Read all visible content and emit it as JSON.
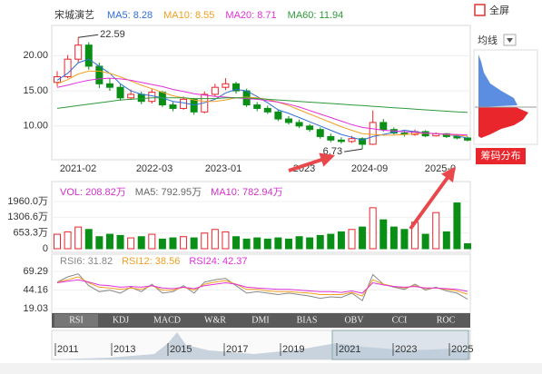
{
  "chart_data": {
    "type": "candlestick",
    "title": "宋城演艺",
    "up_color": "#e8262b",
    "down_color": "#0a8f16",
    "x_labels": [
      "2021-02",
      "2022-03",
      "2023-01",
      "2023",
      "2024-09",
      "2025-0"
    ],
    "ylim": [
      5.2,
      24.3
    ],
    "yticks": [
      {
        "value": 20,
        "label": "20.00"
      },
      {
        "value": 15,
        "label": "15.00"
      },
      {
        "value": 10,
        "label": "10.00"
      }
    ],
    "candles": [
      [
        16.2,
        17.8,
        15.6,
        17.0
      ],
      [
        17.0,
        20.1,
        16.8,
        19.5
      ],
      [
        19.5,
        22.59,
        19.0,
        21.5
      ],
      [
        21.5,
        21.9,
        18.0,
        18.5
      ],
      [
        18.5,
        19.0,
        15.4,
        16.0
      ],
      [
        16.0,
        16.8,
        15.0,
        15.5
      ],
      [
        15.5,
        15.9,
        13.6,
        14.0
      ],
      [
        14.0,
        15.2,
        13.7,
        14.5
      ],
      [
        14.5,
        14.9,
        13.1,
        13.5
      ],
      [
        13.5,
        15.3,
        13.2,
        14.8
      ],
      [
        14.8,
        15.0,
        12.7,
        13.0
      ],
      [
        13.0,
        13.4,
        12.1,
        12.5
      ],
      [
        12.5,
        14.2,
        12.3,
        13.8
      ],
      [
        13.8,
        14.0,
        11.6,
        12.0
      ],
      [
        12.0,
        14.9,
        11.8,
        14.5
      ],
      [
        14.5,
        16.0,
        14.2,
        15.5
      ],
      [
        15.5,
        16.8,
        15.1,
        16.0
      ],
      [
        16.0,
        16.3,
        14.6,
        15.0
      ],
      [
        15.0,
        15.3,
        12.7,
        13.0
      ],
      [
        13.0,
        13.4,
        12.1,
        12.5
      ],
      [
        12.5,
        12.9,
        11.7,
        12.0
      ],
      [
        12.0,
        12.3,
        10.7,
        11.0
      ],
      [
        11.0,
        11.4,
        10.2,
        10.5
      ],
      [
        10.5,
        10.9,
        9.7,
        10.0
      ],
      [
        10.0,
        10.3,
        9.2,
        9.5
      ],
      [
        9.5,
        9.8,
        8.2,
        8.5
      ],
      [
        8.5,
        8.9,
        7.7,
        8.0
      ],
      [
        8.0,
        8.4,
        7.5,
        7.8
      ],
      [
        7.8,
        8.6,
        7.6,
        8.2
      ],
      [
        8.2,
        8.4,
        6.73,
        7.4
      ],
      [
        7.4,
        12.2,
        7.3,
        10.5
      ],
      [
        10.5,
        11.0,
        9.2,
        9.5
      ],
      [
        9.5,
        9.8,
        8.8,
        9.0
      ],
      [
        9.0,
        9.3,
        8.5,
        8.8
      ],
      [
        8.8,
        9.5,
        8.6,
        9.2
      ],
      [
        9.2,
        9.4,
        8.4,
        8.6
      ],
      [
        8.6,
        9.1,
        8.5,
        8.9
      ],
      [
        8.9,
        9.0,
        8.3,
        8.5
      ],
      [
        8.5,
        8.7,
        8.1,
        8.3
      ],
      [
        8.3,
        8.5,
        7.8,
        8.0
      ]
    ],
    "series": [
      {
        "name": "MA5: 8.28",
        "color": "#2f6fd6",
        "values": [
          16.5,
          17.5,
          19.0,
          19.5,
          18.5,
          17.5,
          16.0,
          15.0,
          14.5,
          14.3,
          14.0,
          13.5,
          13.3,
          13.0,
          13.3,
          13.8,
          14.7,
          15.2,
          15.0,
          14.2,
          13.3,
          12.3,
          11.8,
          11.2,
          10.6,
          10.0,
          9.4,
          8.8,
          8.4,
          8.0,
          8.5,
          8.8,
          9.1,
          9.4,
          9.2,
          9.0,
          8.9,
          8.8,
          8.6,
          8.28
        ]
      },
      {
        "name": "MA10: 8.55",
        "color": "#f0a020",
        "values": [
          16.0,
          16.6,
          17.4,
          17.8,
          17.8,
          17.5,
          17.0,
          16.4,
          15.8,
          15.3,
          14.8,
          14.3,
          14.0,
          13.7,
          13.5,
          13.5,
          13.7,
          14.0,
          14.1,
          14.0,
          13.8,
          13.4,
          12.9,
          12.3,
          11.7,
          11.1,
          10.5,
          9.9,
          9.4,
          8.9,
          8.8,
          8.7,
          8.7,
          8.8,
          8.9,
          9.0,
          8.9,
          8.8,
          8.7,
          8.55
        ]
      },
      {
        "name": "MA20: 8.71",
        "color": "#e030d8",
        "values": [
          15.5,
          15.8,
          16.2,
          16.5,
          16.7,
          16.8,
          16.7,
          16.5,
          16.2,
          15.9,
          15.6,
          15.2,
          14.9,
          14.6,
          14.4,
          14.2,
          14.1,
          14.0,
          13.9,
          13.8,
          13.6,
          13.4,
          13.1,
          12.7,
          12.2,
          11.7,
          11.2,
          10.7,
          10.2,
          9.8,
          9.6,
          9.4,
          9.3,
          9.2,
          9.1,
          9.0,
          8.9,
          8.85,
          8.8,
          8.71
        ]
      },
      {
        "name": "MA60: 11.94",
        "color": "#2e9a3a",
        "values": [
          12.5,
          12.7,
          12.9,
          13.1,
          13.3,
          13.5,
          13.7,
          13.8,
          13.9,
          14.0,
          14.0,
          14.0,
          14.0,
          13.9,
          13.9,
          13.9,
          14.0,
          14.0,
          14.0,
          13.9,
          13.8,
          13.7,
          13.6,
          13.5,
          13.4,
          13.3,
          13.2,
          13.1,
          13.0,
          12.9,
          12.8,
          12.7,
          12.6,
          12.5,
          12.4,
          12.3,
          12.2,
          12.1,
          12.0,
          11.94
        ]
      }
    ],
    "volume": {
      "legend": [
        {
          "name": "VOL: 208.82万",
          "color": "#d030c8"
        },
        {
          "name": "MA5: 792.95万",
          "color": "#666666"
        },
        {
          "name": "MA10: 782.94万",
          "color": "#d030c8"
        }
      ],
      "ylim": [
        0,
        2750
      ],
      "yticks": [
        {
          "value": 1960,
          "label": "1960.0万"
        },
        {
          "value": 1306.6,
          "label": "1306.6万"
        },
        {
          "value": 653.3,
          "label": "653.3万"
        },
        0
      ],
      "values": [
        600,
        700,
        900,
        800,
        500,
        600,
        550,
        450,
        500,
        600,
        400,
        450,
        500,
        450,
        650,
        800,
        700,
        500,
        400,
        450,
        400,
        450,
        400,
        500,
        450,
        550,
        600,
        700,
        800,
        900,
        1700,
        1200,
        900,
        800,
        1100,
        600,
        1500,
        700,
        1900,
        208.82
      ]
    },
    "rsi": {
      "ylim": [
        12.9,
        92.6
      ],
      "yticks": [
        69.29,
        44.16,
        19.03
      ],
      "series": [
        {
          "name": "RSI6: 31.82",
          "color": "#888888",
          "values": [
            55,
            62,
            66,
            50,
            42,
            44,
            40,
            48,
            42,
            52,
            40,
            42,
            50,
            40,
            55,
            58,
            60,
            50,
            40,
            42,
            40,
            38,
            40,
            38,
            36,
            33,
            35,
            34,
            40,
            30,
            65,
            52,
            48,
            45,
            52,
            44,
            48,
            43,
            40,
            31.82
          ]
        },
        {
          "name": "RSI12: 38.56",
          "color": "#f0a020",
          "values": [
            55,
            58,
            62,
            54,
            48,
            47,
            45,
            47,
            45,
            50,
            44,
            44,
            48,
            44,
            52,
            55,
            57,
            52,
            45,
            45,
            43,
            42,
            42,
            41,
            40,
            38,
            38,
            38,
            41,
            36,
            58,
            52,
            49,
            47,
            50,
            46,
            47,
            45,
            43,
            38.56
          ]
        },
        {
          "name": "RSI24: 42.37",
          "color": "#e030d8",
          "values": [
            54,
            56,
            58,
            55,
            51,
            50,
            48,
            49,
            48,
            50,
            47,
            46,
            48,
            46,
            50,
            52,
            54,
            52,
            48,
            47,
            46,
            45,
            45,
            44,
            43,
            42,
            42,
            41,
            43,
            40,
            54,
            51,
            49,
            48,
            49,
            47,
            47,
            46,
            45,
            42.37
          ]
        }
      ]
    }
  },
  "ui": {
    "fullscreen": "全屏",
    "ma_select": "均线",
    "chip_button": "筹码分布",
    "tabs": [
      "RSI",
      "KDJ",
      "MACD",
      "W&R",
      "DMI",
      "BIAS",
      "OBV",
      "CCI",
      "ROC"
    ],
    "timeline": [
      2011,
      2013,
      2015,
      2017,
      2019,
      2021,
      2023,
      2025
    ]
  }
}
